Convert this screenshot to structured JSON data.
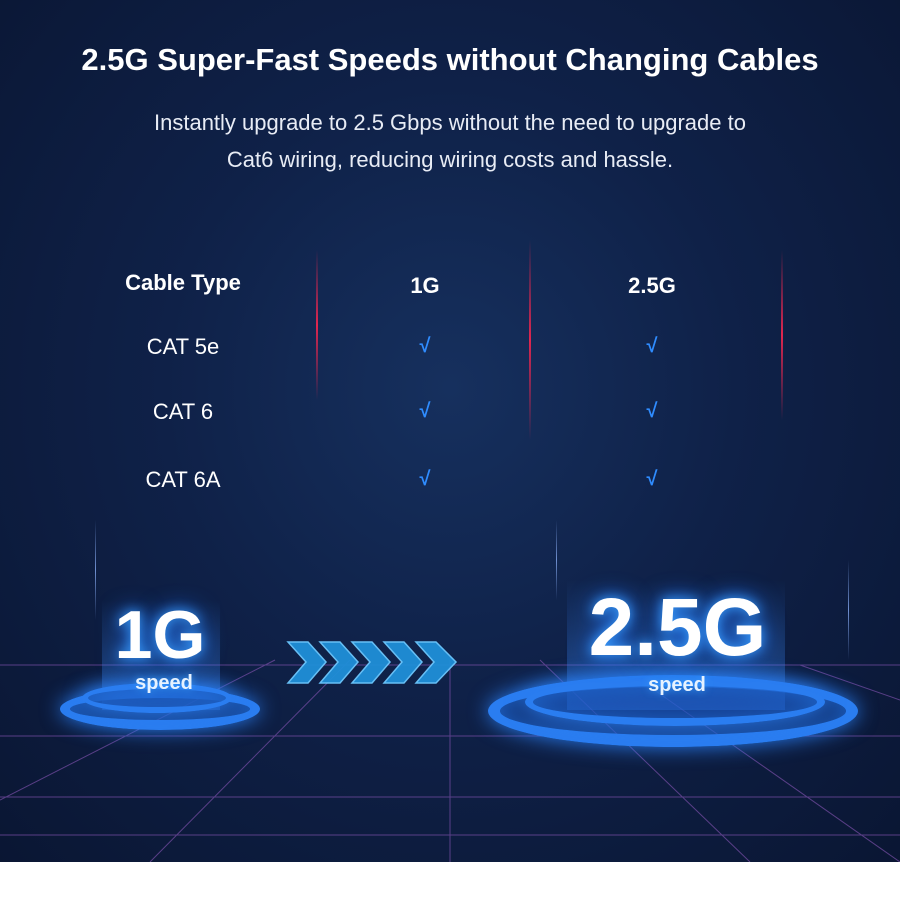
{
  "header": {
    "title": "2.5G Super-Fast Speeds without Changing Cables",
    "subtitle_line1": "Instantly upgrade to 2.5 Gbps without the need to upgrade to",
    "subtitle_line2": "Cat6 wiring, reducing wiring costs and hassle."
  },
  "table": {
    "headers": [
      "Cable Type",
      "1G",
      "2.5G"
    ],
    "rows": [
      {
        "cable": "CAT 5e",
        "g1": "√",
        "g25": "√"
      },
      {
        "cable": "CAT 6",
        "g1": "√",
        "g25": "√"
      },
      {
        "cable": "CAT 6A",
        "g1": "√",
        "g25": "√"
      }
    ]
  },
  "illustration": {
    "left_speed": "1G",
    "left_label": "speed",
    "right_speed": "2.5G",
    "right_label": "speed",
    "arrow_icon": "chevrons-right-icon"
  },
  "colors": {
    "background": "#0f2148",
    "accent_blue": "#2f8cff",
    "accent_red": "#e0264f"
  }
}
